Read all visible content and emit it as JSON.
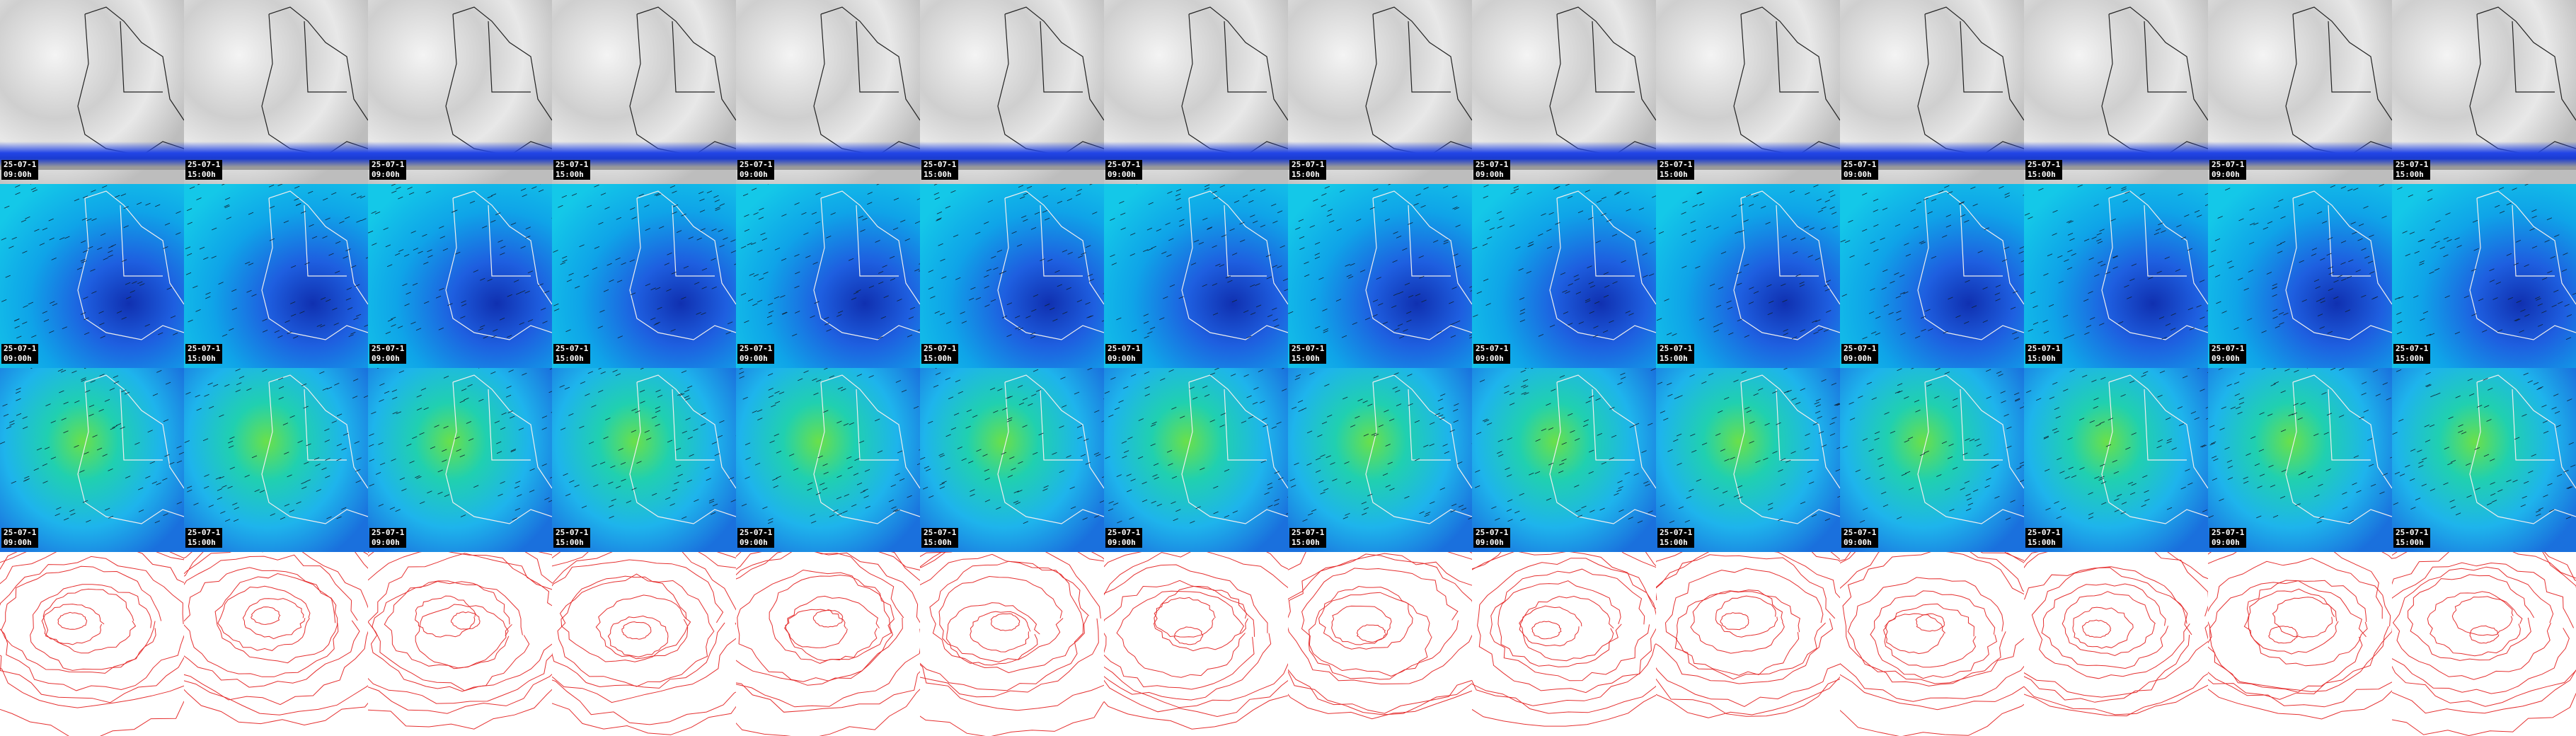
{
  "columns": [
    {
      "date": "25-07-1",
      "time": "09:00h"
    },
    {
      "date": "25-07-1",
      "time": "15:00h"
    },
    {
      "date": "25-07-1",
      "time": "09:00h"
    },
    {
      "date": "25-07-1",
      "time": "15:00h"
    },
    {
      "date": "25-07-1",
      "time": "09:00h"
    },
    {
      "date": "25-07-1",
      "time": "15:00h"
    },
    {
      "date": "25-07-1",
      "time": "09:00h"
    },
    {
      "date": "25-07-1",
      "time": "15:00h"
    },
    {
      "date": "25-07-1",
      "time": "09:00h"
    },
    {
      "date": "25-07-1",
      "time": "15:00h"
    },
    {
      "date": "25-07-1",
      "time": "09:00h"
    },
    {
      "date": "25-07-1",
      "time": "15:00h"
    },
    {
      "date": "25-07-1",
      "time": "09:00h"
    },
    {
      "date": "25-07-1",
      "time": "15:00h"
    }
  ]
}
